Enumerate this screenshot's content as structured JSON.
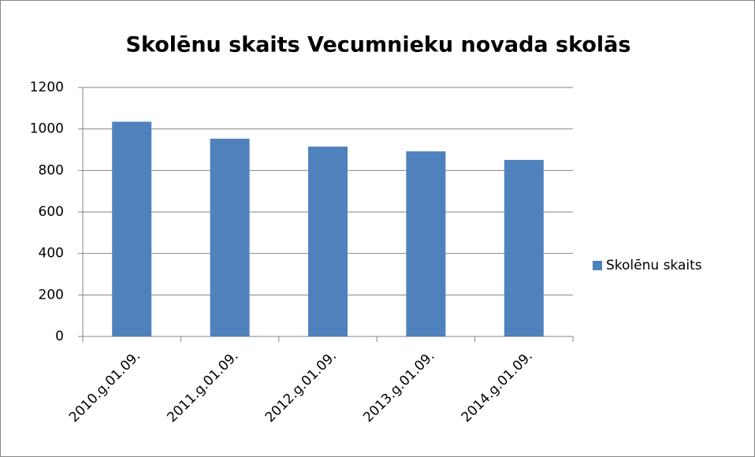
{
  "chart_data": {
    "type": "bar",
    "title": "Skolēnu skaits Vecumnieku novada skolās",
    "categories": [
      "2010.g.01.09.",
      "2011.g.01.09.",
      "2012.g.01.09.",
      "2013.g.01.09.",
      "2014.g.01.09."
    ],
    "series": [
      {
        "name": "Skolēnu skaits",
        "color": "#4f81bd",
        "values": [
          1035,
          953,
          915,
          892,
          851
        ]
      }
    ],
    "ylim": [
      0,
      1200
    ],
    "yticks": [
      0,
      200,
      400,
      600,
      800,
      1000,
      1200
    ],
    "grid": true,
    "legend": "right"
  }
}
